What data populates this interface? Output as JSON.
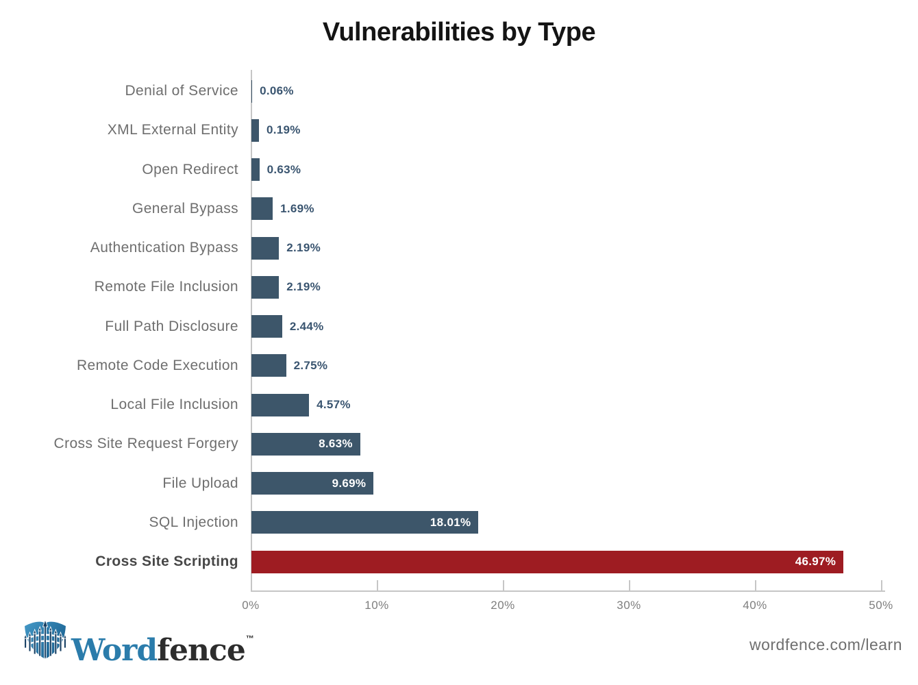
{
  "title": "Vulnerabilities by Type",
  "colors": {
    "bar": "#3d566a",
    "highlight_bar": "#9e1c22",
    "value_text": "#3a5570",
    "value_text_inside": "#ffffff",
    "category_label": "#6e6e6e",
    "category_label_emphasis": "#474747",
    "axis": "#c6c6c6",
    "tick_label": "#7e7e7e",
    "logo_blue": "#2b7cab",
    "logo_dark": "#2d2d2d"
  },
  "chart_data": {
    "type": "bar",
    "orientation": "horizontal",
    "title": "Vulnerabilities by Type",
    "categories": [
      "Denial of Service",
      "XML External Entity",
      "Open Redirect",
      "General Bypass",
      "Authentication Bypass",
      "Remote File Inclusion",
      "Full Path Disclosure",
      "Remote Code Execution",
      "Local File Inclusion",
      "Cross Site Request Forgery",
      "File Upload",
      "SQL Injection",
      "Cross Site Scripting"
    ],
    "values": [
      0.06,
      0.19,
      0.63,
      1.69,
      2.19,
      2.19,
      2.44,
      2.75,
      4.57,
      8.63,
      9.69,
      18.01,
      46.97
    ],
    "value_labels": [
      "0.06%",
      "0.19%",
      "0.63%",
      "1.69%",
      "2.19%",
      "2.19%",
      "2.44%",
      "2.75%",
      "4.57%",
      "8.63%",
      "9.69%",
      "18.01%",
      "46.97%"
    ],
    "highlight_category": "Cross Site Scripting",
    "x_ticks": [
      "0%",
      "10%",
      "20%",
      "30%",
      "40%",
      "50%"
    ],
    "xlim": [
      0,
      50
    ],
    "xlabel": "",
    "ylabel": "",
    "grid": false,
    "legend": false
  },
  "footer": {
    "logo_icon": "wordfence-shield-fence-icon",
    "brand_word": "Word",
    "brand_fence": "fence",
    "trademark": "™",
    "url": "wordfence.com/learn"
  }
}
